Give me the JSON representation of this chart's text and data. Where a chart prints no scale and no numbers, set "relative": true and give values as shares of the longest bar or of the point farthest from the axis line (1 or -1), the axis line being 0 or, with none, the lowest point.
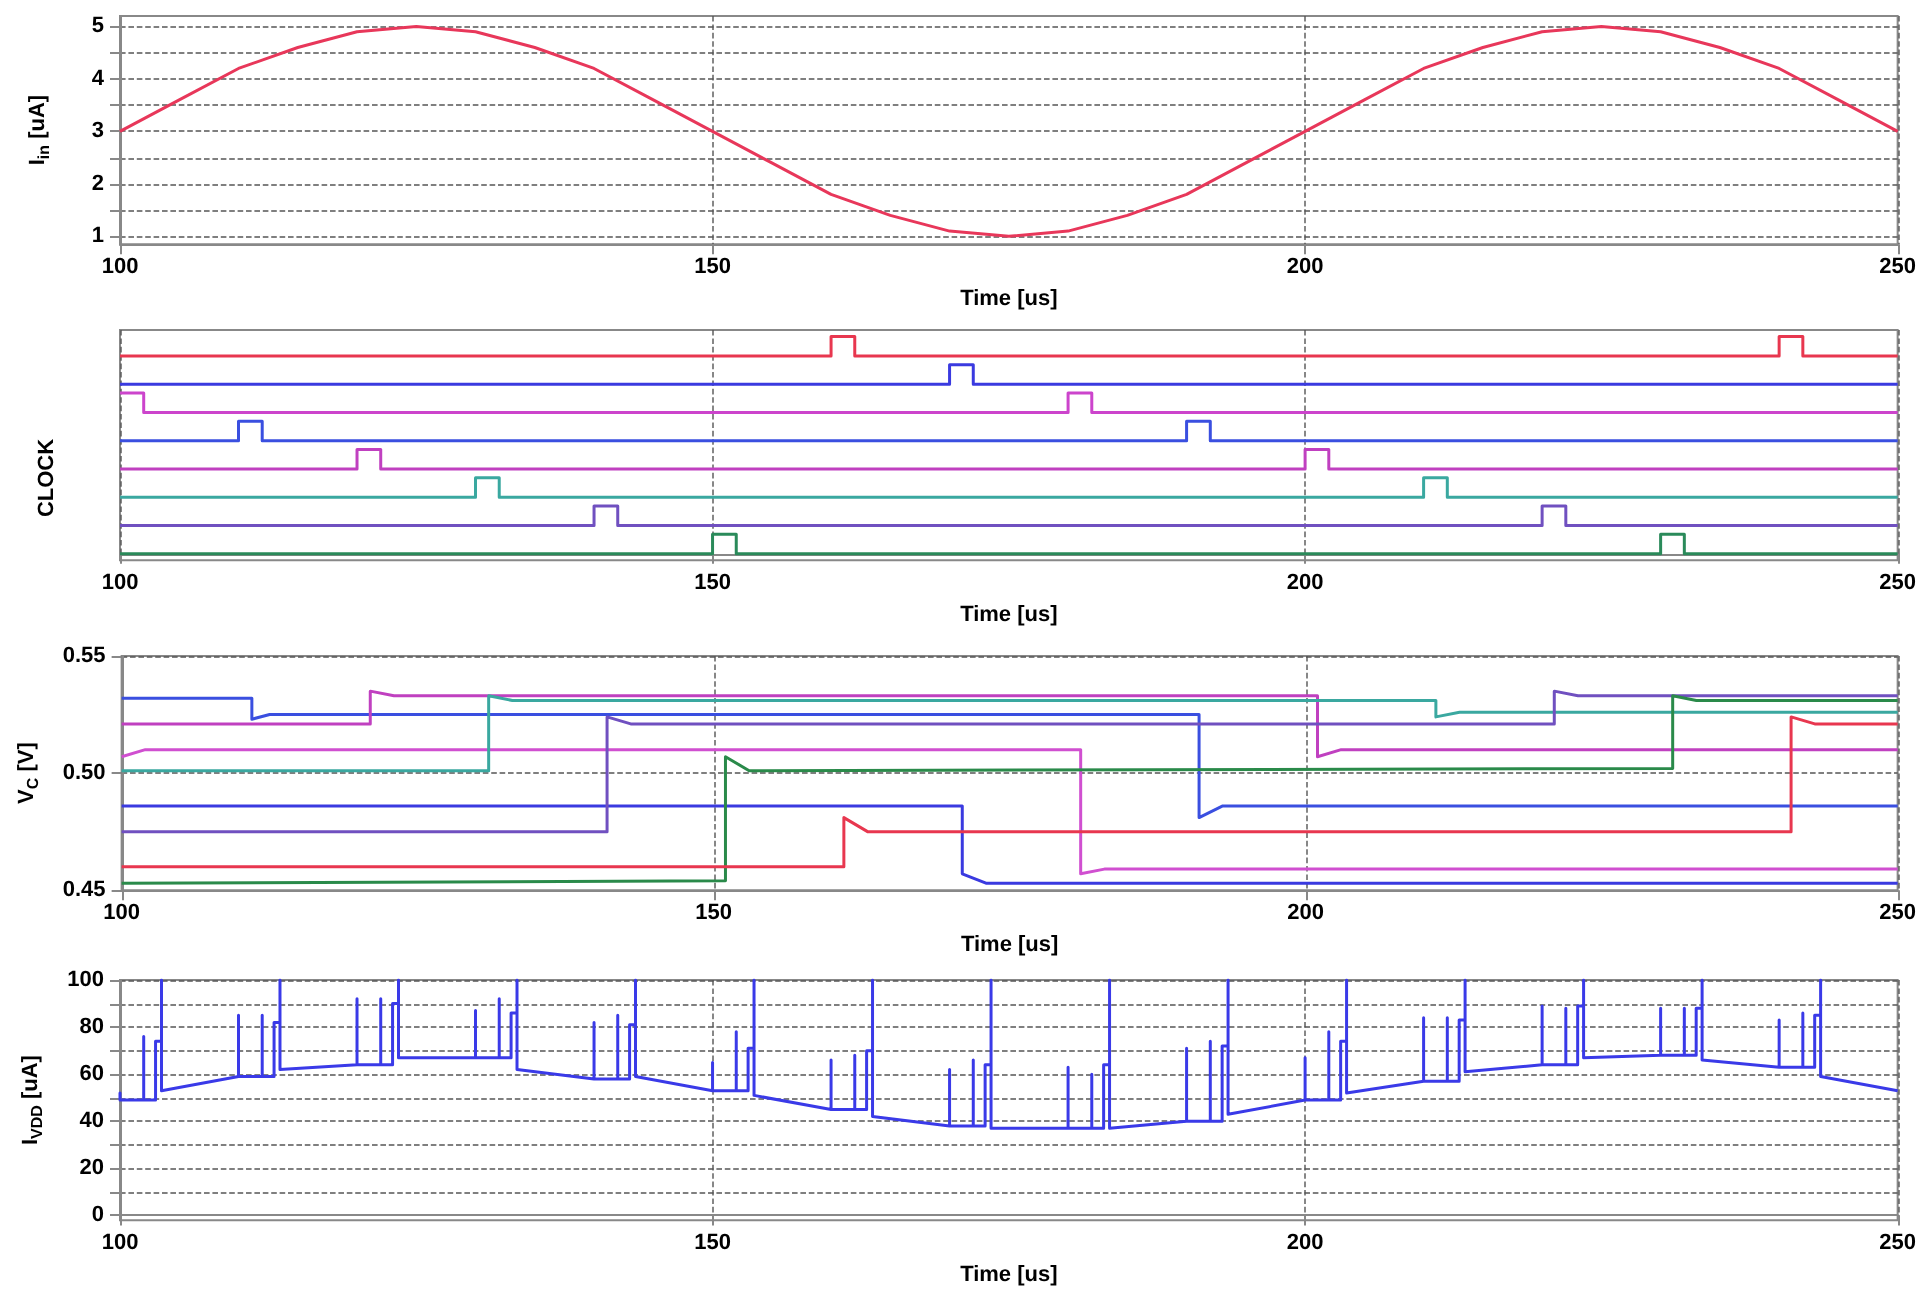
{
  "chart_data": [
    {
      "type": "line",
      "xlabel": "Time [us]",
      "ylabel": "I$_{in}$ [uA]",
      "xlim": [
        100,
        250
      ],
      "xticks": [
        100,
        150,
        200,
        250
      ],
      "ylim": [
        0.85,
        5.2
      ],
      "yticks": [
        1,
        {
          "value": 1.5,
          "label": null
        },
        2,
        {
          "value": 2.5,
          "label": null
        },
        3,
        {
          "value": 3.5,
          "label": null
        },
        4,
        {
          "value": 4.5,
          "label": null
        },
        5
      ],
      "grid": true,
      "marker": "none",
      "line_style": "solid",
      "series": [
        {
          "color": "#e8375a",
          "x": [
            100,
            105,
            110,
            115,
            120,
            125,
            130,
            135,
            140,
            145,
            150,
            155,
            160,
            165,
            170,
            175,
            180,
            185,
            190,
            195,
            200,
            205,
            210,
            215,
            220,
            225,
            230,
            235,
            240,
            245,
            250
          ],
          "values": [
            3,
            3.6,
            4.2,
            4.6,
            4.9,
            5,
            4.9,
            4.6,
            4.2,
            3.6,
            3,
            2.4,
            1.8,
            1.4,
            1.1,
            1,
            1.1,
            1.4,
            1.8,
            2.4,
            3,
            3.6,
            4.2,
            4.6,
            4.9,
            5,
            4.9,
            4.6,
            4.2,
            3.6,
            3
          ]
        }
      ]
    },
    {
      "type": "line",
      "relative": true,
      "xlabel": "Time [us]",
      "ylabel": "CLOCK",
      "xlim": [
        100,
        250
      ],
      "xticks": [
        100,
        150,
        200,
        250
      ],
      "grid": "x",
      "marker": "none",
      "line_style": "solid",
      "series": [
        {
          "color": "#e8374f",
          "x": [
            100,
            160,
            160,
            162,
            162,
            240,
            240,
            242,
            242,
            250
          ],
          "values": [
            0.91,
            0.91,
            1,
            1,
            0.91,
            0.91,
            1,
            1,
            0.91,
            0.91
          ]
        },
        {
          "color": "#3a3ae0",
          "x": [
            100,
            170,
            170,
            172,
            172,
            250
          ],
          "values": [
            0.78,
            0.78,
            0.87,
            0.87,
            0.78,
            0.78
          ]
        },
        {
          "color": "#cc44cc",
          "x": [
            100,
            102,
            102,
            180,
            180,
            182,
            182,
            250
          ],
          "values": [
            0.74,
            0.74,
            0.65,
            0.65,
            0.74,
            0.74,
            0.65,
            0.65
          ]
        },
        {
          "color": "#3a4fe0",
          "x": [
            100,
            110,
            110,
            112,
            112,
            190,
            190,
            192,
            192,
            250
          ],
          "values": [
            0.52,
            0.52,
            0.61,
            0.61,
            0.52,
            0.52,
            0.61,
            0.61,
            0.52,
            0.52
          ]
        },
        {
          "color": "#c040c0",
          "x": [
            100,
            120,
            120,
            122,
            122,
            200,
            200,
            202,
            202,
            250
          ],
          "values": [
            0.39,
            0.39,
            0.48,
            0.48,
            0.39,
            0.39,
            0.48,
            0.48,
            0.39,
            0.39
          ]
        },
        {
          "color": "#3aa8a0",
          "x": [
            100,
            130,
            130,
            132,
            132,
            210,
            210,
            212,
            212,
            250
          ],
          "values": [
            0.26,
            0.26,
            0.35,
            0.35,
            0.26,
            0.26,
            0.35,
            0.35,
            0.26,
            0.26
          ]
        },
        {
          "color": "#7050c0",
          "x": [
            100,
            140,
            140,
            142,
            142,
            220,
            220,
            222,
            222,
            250
          ],
          "values": [
            0.13,
            0.13,
            0.22,
            0.22,
            0.13,
            0.13,
            0.22,
            0.22,
            0.13,
            0.13
          ]
        },
        {
          "color": "#2a8a5a",
          "x": [
            100,
            150,
            150,
            152,
            152,
            230,
            230,
            232,
            232,
            250
          ],
          "values": [
            0,
            0,
            0.09,
            0.09,
            0,
            0,
            0.09,
            0.09,
            0,
            0
          ]
        }
      ]
    },
    {
      "type": "line",
      "xlabel": "Time [us]",
      "ylabel": "V$_{C}$ [V]",
      "xlim": [
        100,
        250
      ],
      "xticks": [
        100,
        150,
        200,
        250
      ],
      "ylim": [
        0.45,
        0.55
      ],
      "yticks": [
        0.45,
        {
          "value": 0.5,
          "label": "0.50"
        },
        0.55
      ],
      "grid": true,
      "marker": "none",
      "line_style": "solid",
      "series": [
        {
          "color": "#3a4fe0",
          "x": [
            100,
            111,
            111,
            112.5,
            191,
            191,
            193,
            250
          ],
          "values": [
            0.532,
            0.532,
            0.523,
            0.525,
            0.525,
            0.481,
            0.486,
            0.486
          ]
        },
        {
          "color": "#3a3ae0",
          "x": [
            100,
            171,
            171,
            173,
            250
          ],
          "values": [
            0.486,
            0.486,
            0.457,
            0.453,
            0.453
          ]
        },
        {
          "color": "#d04fd0",
          "x": [
            100,
            102,
            181,
            181,
            183,
            250
          ],
          "values": [
            0.507,
            0.51,
            0.51,
            0.457,
            0.459,
            0.459
          ]
        },
        {
          "color": "#c040c0",
          "x": [
            100,
            121,
            121,
            123,
            201,
            201,
            203,
            250
          ],
          "values": [
            0.521,
            0.521,
            0.535,
            0.533,
            0.533,
            0.507,
            0.51,
            0.51
          ]
        },
        {
          "color": "#3aa8a0",
          "x": [
            100,
            131,
            131,
            133,
            211,
            211,
            213,
            250
          ],
          "values": [
            0.501,
            0.501,
            0.533,
            0.531,
            0.531,
            0.524,
            0.526,
            0.526
          ]
        },
        {
          "color": "#7050c0",
          "x": [
            100,
            141,
            141,
            143,
            221,
            221,
            223,
            250
          ],
          "values": [
            0.475,
            0.475,
            0.524,
            0.521,
            0.521,
            0.535,
            0.533,
            0.533
          ]
        },
        {
          "color": "#2a8a4a",
          "x": [
            100,
            151,
            151,
            153,
            231,
            231,
            233,
            250
          ],
          "values": [
            0.453,
            0.454,
            0.507,
            0.501,
            0.502,
            0.533,
            0.531,
            0.531
          ]
        },
        {
          "color": "#e8374f",
          "x": [
            100,
            161,
            161,
            163,
            241,
            241,
            243,
            250
          ],
          "values": [
            0.46,
            0.46,
            0.481,
            0.475,
            0.475,
            0.524,
            0.521,
            0.521
          ]
        }
      ]
    },
    {
      "type": "line",
      "xlabel": "Time [us]",
      "ylabel": "I$_{VDD}$ [uA]",
      "xlim": [
        100,
        250
      ],
      "xticks": [
        100,
        150,
        200,
        250
      ],
      "ylim": [
        -2,
        100
      ],
      "yticks": [
        0,
        {
          "value": 10,
          "label": null
        },
        20,
        {
          "value": 30,
          "label": null
        },
        40,
        {
          "value": 50,
          "label": null
        },
        60,
        {
          "value": 70,
          "label": null
        },
        80,
        {
          "value": 90,
          "label": null
        },
        100
      ],
      "grid": true,
      "marker": "none",
      "line_style": "solid",
      "series": [
        {
          "color": "#3a3ae8",
          "x": [
            100,
            100,
            100,
            102,
            102,
            102,
            103,
            103,
            103.5,
            103.5,
            103.5,
            110,
            110,
            110,
            112,
            112,
            112,
            113,
            113,
            113.5,
            113.5,
            113.5,
            120,
            120,
            120,
            122,
            122,
            122,
            123,
            123,
            123.5,
            123.5,
            123.5,
            130,
            130,
            130,
            132,
            132,
            132,
            133,
            133,
            133.5,
            133.5,
            133.5,
            140,
            140,
            140,
            142,
            142,
            142,
            143,
            143,
            143.5,
            143.5,
            143.5,
            150,
            150,
            150,
            152,
            152,
            152,
            153,
            153,
            153.5,
            153.5,
            153.5,
            160,
            160,
            160,
            162,
            162,
            162,
            163,
            163,
            163.5,
            163.5,
            163.5,
            170,
            170,
            170,
            172,
            172,
            172,
            173,
            173,
            173.5,
            173.5,
            173.5,
            180,
            180,
            180,
            182,
            182,
            182,
            183,
            183,
            183.5,
            183.5,
            183.5,
            190,
            190,
            190,
            192,
            192,
            192,
            193,
            193,
            193.5,
            193.5,
            193.5,
            200,
            200,
            200,
            202,
            202,
            202,
            203,
            203,
            203.5,
            203.5,
            203.5,
            210,
            210,
            210,
            212,
            212,
            212,
            213,
            213,
            213.5,
            213.5,
            213.5,
            220,
            220,
            220,
            222,
            222,
            222,
            223,
            223,
            223.5,
            223.5,
            223.5,
            230,
            230,
            230,
            232,
            232,
            232,
            233,
            233,
            233.5,
            233.5,
            233.5,
            240,
            240,
            240,
            242,
            242,
            242,
            243,
            243,
            243.5,
            243.5,
            243.5,
            250
          ],
          "values": [
            49,
            52,
            49,
            49,
            76,
            49,
            49,
            74,
            74,
            100,
            53,
            59,
            85,
            59,
            59,
            85,
            59,
            59,
            82,
            82,
            100,
            62,
            64,
            92,
            64,
            64,
            92,
            64,
            64,
            90,
            90,
            100,
            67,
            67,
            87,
            67,
            67,
            92,
            67,
            67,
            86,
            86,
            100,
            62,
            58,
            82,
            58,
            58,
            85,
            58,
            58,
            81,
            81,
            100,
            59,
            53,
            65,
            53,
            53,
            78,
            53,
            53,
            71,
            71,
            100,
            51,
            45,
            66,
            45,
            45,
            68,
            45,
            45,
            70,
            70,
            100,
            42,
            38,
            62,
            38,
            38,
            66,
            38,
            38,
            64,
            64,
            100,
            37,
            37,
            63,
            37,
            37,
            60,
            37,
            37,
            64,
            64,
            100,
            37,
            40,
            71,
            40,
            40,
            74,
            40,
            40,
            72,
            72,
            100,
            43,
            49,
            67,
            49,
            49,
            78,
            49,
            49,
            74,
            74,
            100,
            52,
            57,
            84,
            57,
            57,
            84,
            57,
            57,
            83,
            83,
            100,
            61,
            64,
            89,
            64,
            64,
            88,
            64,
            64,
            89,
            89,
            100,
            67,
            68,
            88,
            68,
            68,
            88,
            68,
            68,
            88,
            88,
            100,
            66,
            63,
            83,
            63,
            63,
            86,
            63,
            63,
            85,
            85,
            100,
            59,
            53
          ]
        }
      ]
    }
  ]
}
